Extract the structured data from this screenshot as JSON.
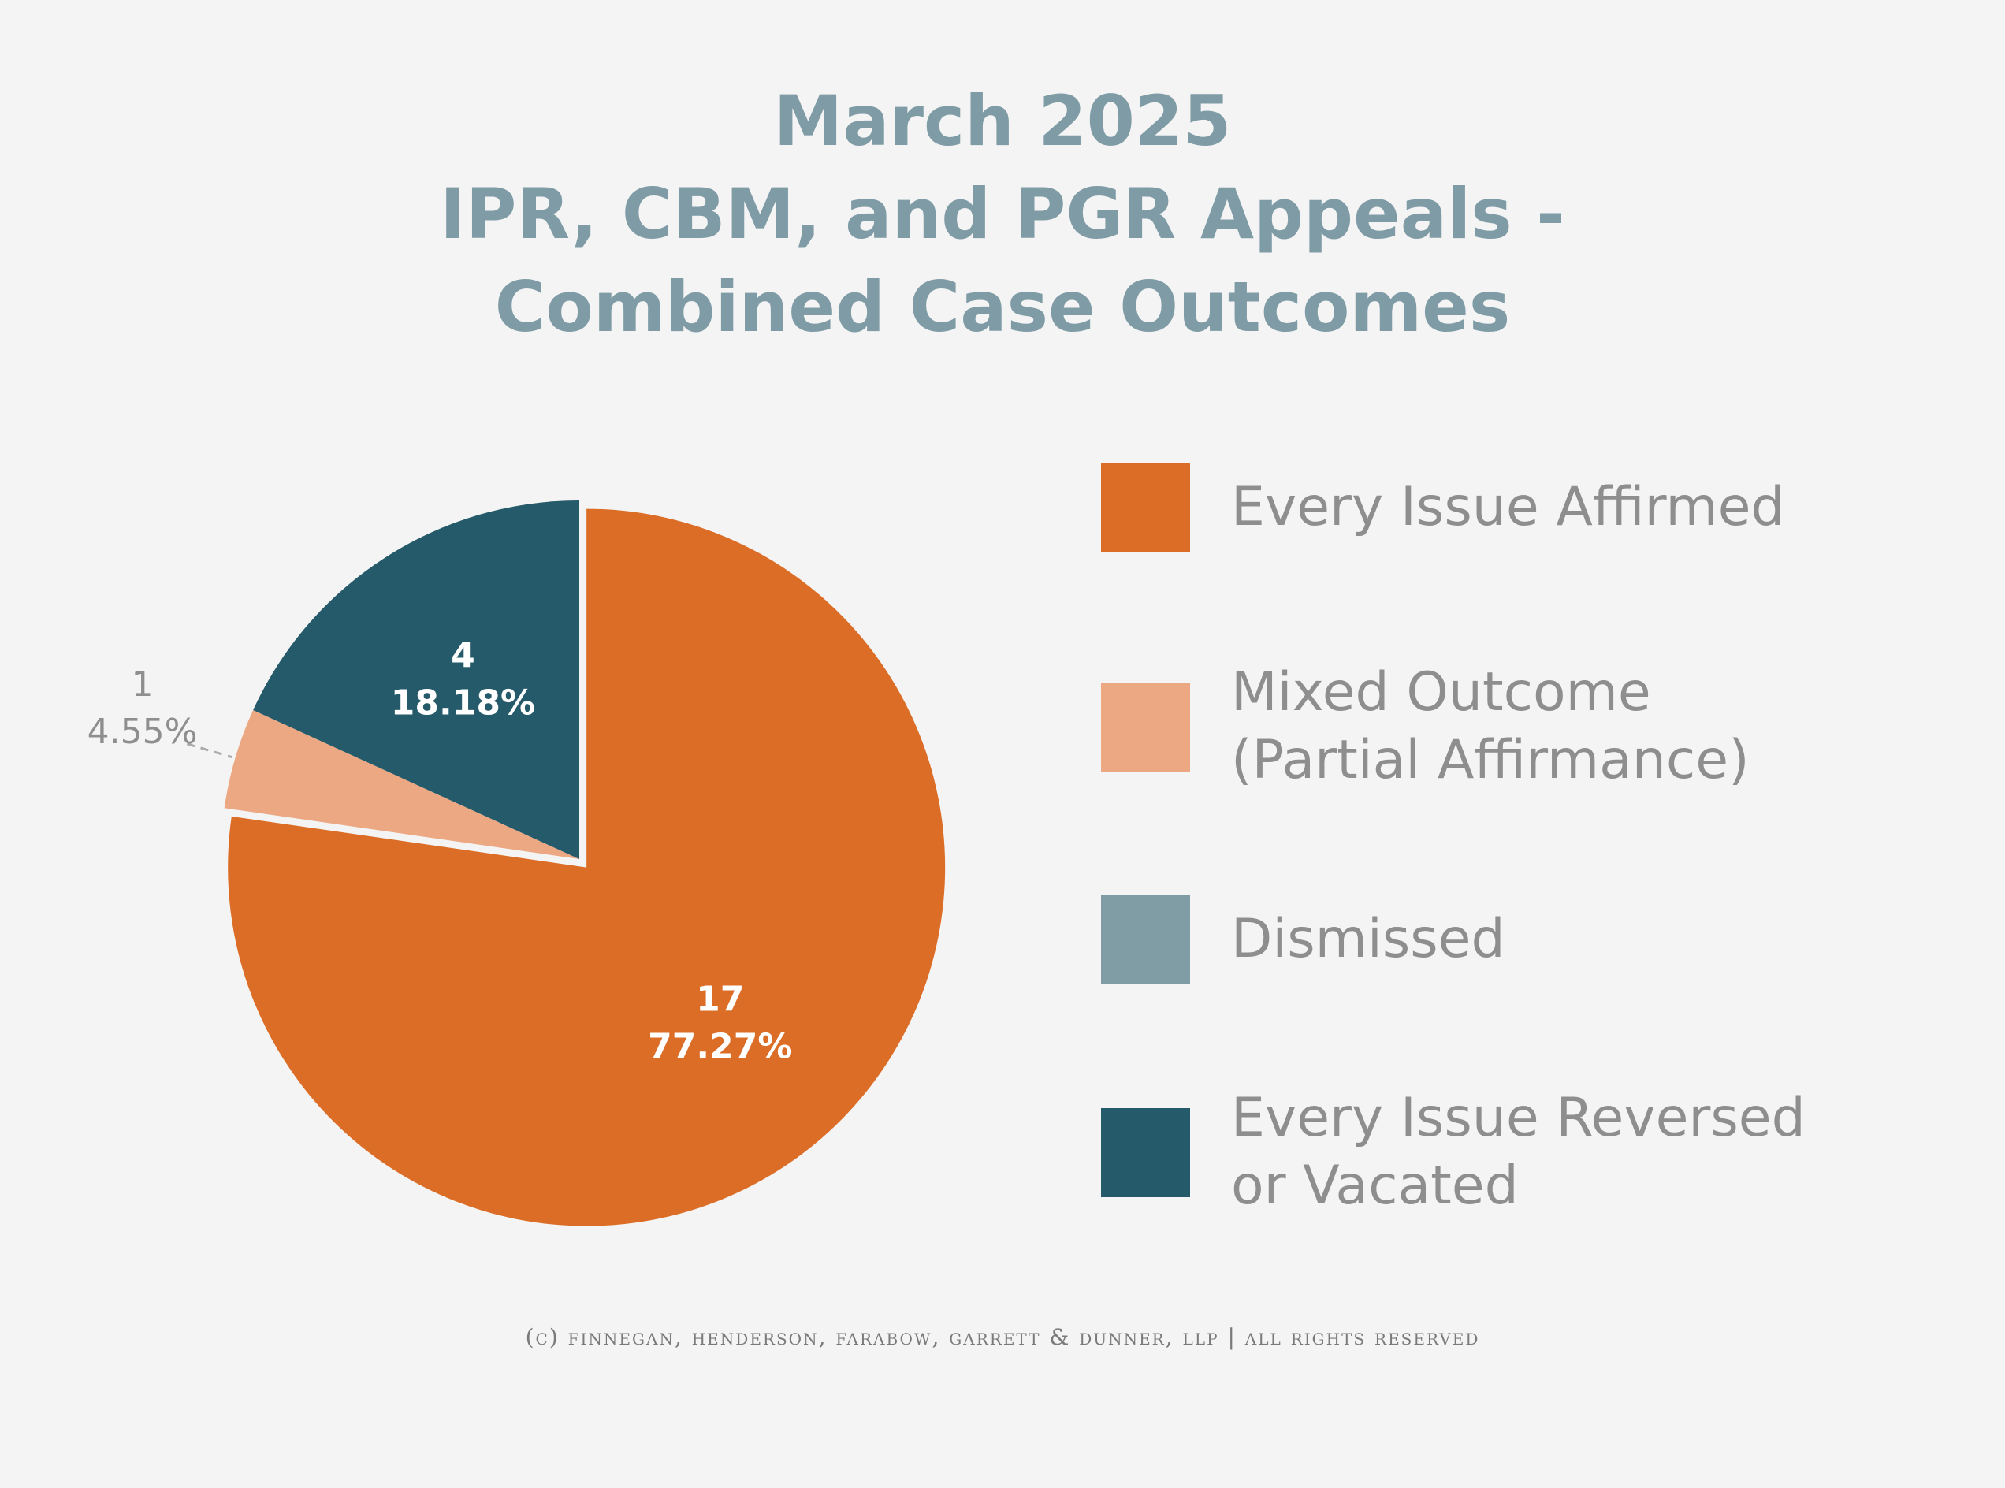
{
  "chart_data": {
    "type": "pie",
    "title_lines": [
      "March 2025",
      "IPR, CBM, and PGR Appeals -",
      "Combined Case Outcomes"
    ],
    "categories": [
      "Every Issue Affirmed",
      "Mixed Outcome (Partial Affirmance)",
      "Dismissed",
      "Every Issue Reversed or Vacated"
    ],
    "values": [
      17,
      1,
      0,
      4
    ],
    "slices": [
      {
        "name": "Every Issue Affirmed",
        "value": 17,
        "count_label": "17",
        "pct_label": "77.27%",
        "color": "#dc6d27"
      },
      {
        "name": "Mixed Outcome (Partial Affirmance)",
        "value": 1,
        "count_label": "1",
        "pct_label": "4.55%",
        "color": "#eba882"
      },
      {
        "name": "Dismissed",
        "value": 0,
        "count_label": "",
        "pct_label": "",
        "color": "#809ca5"
      },
      {
        "name": "Every Issue Reversed or Vacated",
        "value": 4,
        "count_label": "4",
        "pct_label": "18.18%",
        "color": "#255a6b"
      }
    ],
    "legend": [
      {
        "lines": [
          "Every Issue Affirmed"
        ],
        "color": "#dc6d27"
      },
      {
        "lines": [
          "Mixed Outcome",
          "(Partial Affirmance)"
        ],
        "color": "#eba882"
      },
      {
        "lines": [
          "Dismissed"
        ],
        "color": "#809ca5"
      },
      {
        "lines": [
          "Every Issue Reversed",
          "or Vacated"
        ],
        "color": "#255a6b"
      }
    ],
    "legend_position": "right",
    "exploded_slice": "Every Issue Affirmed"
  },
  "footer": "(c) finnegan, henderson, farabow, garrett & dunner, llp | all rights reserved"
}
